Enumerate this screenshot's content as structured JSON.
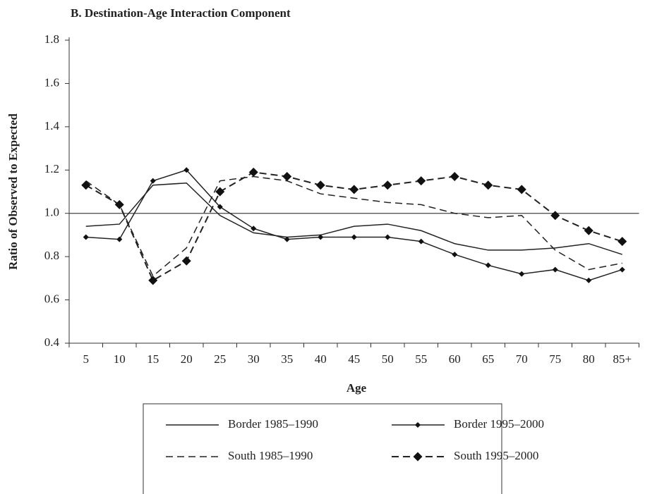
{
  "chart_data": {
    "type": "line",
    "title": "B. Destination-Age Interaction Component",
    "x_label": "Age",
    "y_label": "Ratio of Observed to Expected",
    "categories": [
      "5",
      "10",
      "15",
      "20",
      "25",
      "30",
      "35",
      "40",
      "45",
      "50",
      "55",
      "60",
      "65",
      "70",
      "75",
      "80",
      "85+"
    ],
    "series": [
      {
        "name": "Border 1985–1990",
        "color": "#222222",
        "dash": false,
        "marker": false,
        "values": [
          0.94,
          0.95,
          1.13,
          1.14,
          0.99,
          0.91,
          0.89,
          0.9,
          0.94,
          0.95,
          0.92,
          0.86,
          0.83,
          0.83,
          0.84,
          0.86,
          0.81
        ]
      },
      {
        "name": "Border 1995–2000",
        "color": "#222222",
        "dash": false,
        "marker": "small",
        "values": [
          0.89,
          0.88,
          1.15,
          1.2,
          1.03,
          0.93,
          0.88,
          0.89,
          0.89,
          0.89,
          0.87,
          0.81,
          0.76,
          0.72,
          0.74,
          0.69,
          0.74
        ]
      },
      {
        "name": "South 1985–1990",
        "color": "#222222",
        "dash": true,
        "marker": false,
        "values": [
          1.15,
          1.04,
          0.71,
          0.84,
          1.15,
          1.17,
          1.15,
          1.09,
          1.07,
          1.05,
          1.04,
          1.0,
          0.98,
          0.99,
          0.83,
          0.74,
          0.77
        ]
      },
      {
        "name": "South 1995–2000",
        "color": "#222222",
        "dash": true,
        "marker": "large",
        "values": [
          1.13,
          1.04,
          0.69,
          0.78,
          1.1,
          1.19,
          1.17,
          1.13,
          1.11,
          1.13,
          1.15,
          1.17,
          1.13,
          1.11,
          0.99,
          0.92,
          0.87
        ]
      }
    ],
    "reference_line": 1,
    "ylim": [
      0.4,
      1.8
    ],
    "yticks": [
      0.4,
      0.6,
      0.8,
      {
        "value": 1,
        "label": "1.0"
      },
      1.2,
      1.4,
      1.6,
      1.8
    ],
    "grid": false,
    "legend": "bottom"
  }
}
